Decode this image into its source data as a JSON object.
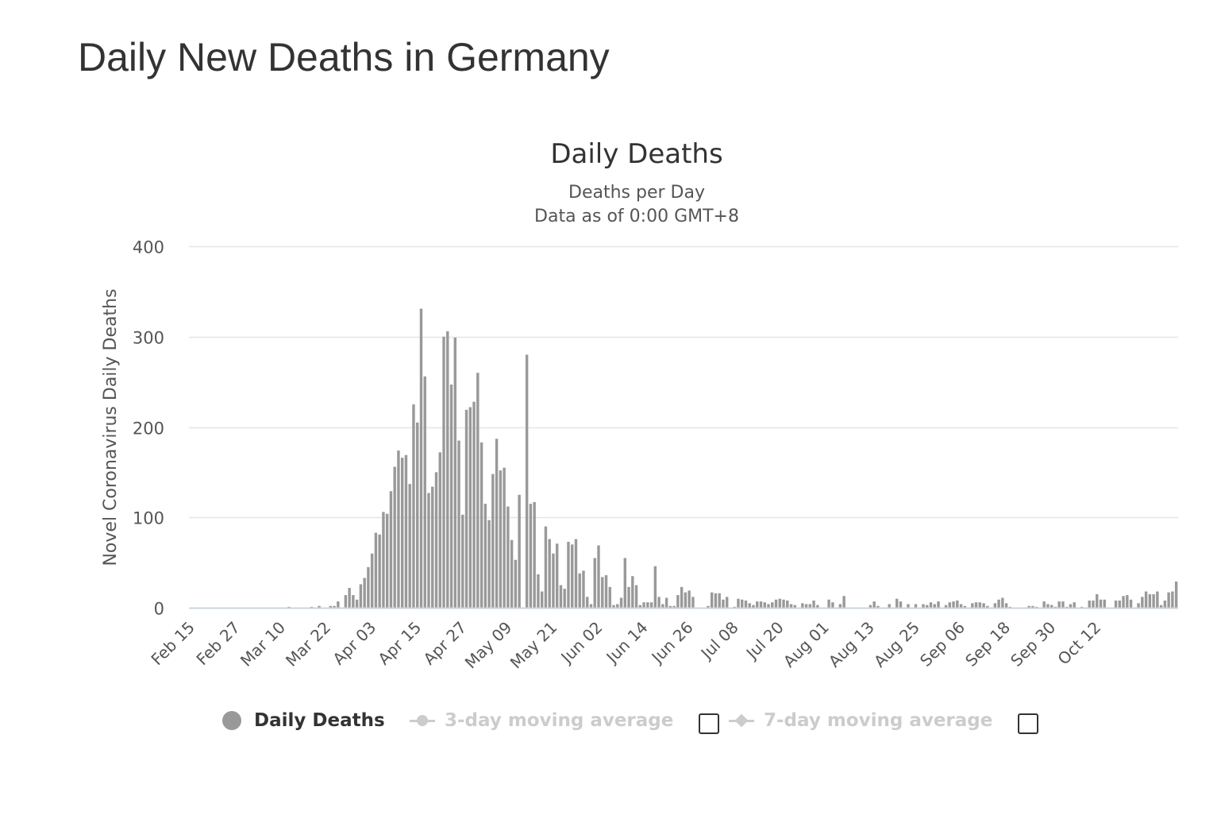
{
  "page": {
    "title": "Daily New Deaths in Germany"
  },
  "chart_data": {
    "type": "bar",
    "title": "Daily Deaths",
    "subtitle_lines": [
      "Deaths per Day",
      "Data as of 0:00 GMT+8"
    ],
    "ylabel": "Novel Coronavirus Daily Deaths",
    "xlabel": "",
    "ylim": [
      0,
      400
    ],
    "y_ticks": [
      0,
      100,
      200,
      300,
      400
    ],
    "grid": true,
    "x_start_date": "2020-02-15",
    "x_tick_labels": [
      "Feb 15",
      "Feb 27",
      "Mar 10",
      "Mar 22",
      "Apr 03",
      "Apr 15",
      "Apr 27",
      "May 09",
      "May 21",
      "Jun 02",
      "Jun 14",
      "Jun 26",
      "Jul 08",
      "Jul 20",
      "Aug 01",
      "Aug 13",
      "Aug 25",
      "Sep 06",
      "Sep 18",
      "Sep 30",
      "Oct 12"
    ],
    "series": [
      {
        "name": "Daily Deaths",
        "color": "#999999",
        "values": [
          0,
          0,
          0,
          0,
          0,
          0,
          0,
          0,
          0,
          0,
          0,
          0,
          0,
          0,
          0,
          0,
          0,
          0,
          0,
          0,
          0,
          0,
          0,
          0,
          0,
          0,
          1,
          0,
          0,
          0,
          0,
          0,
          1,
          0,
          2,
          0,
          0,
          2,
          2,
          7,
          0,
          14,
          22,
          14,
          9,
          26,
          33,
          45,
          60,
          83,
          81,
          106,
          104,
          129,
          156,
          174,
          166,
          169,
          137,
          225,
          205,
          331,
          256,
          127,
          134,
          150,
          172,
          300,
          306,
          247,
          299,
          185,
          103,
          219,
          222,
          228,
          260,
          183,
          115,
          97,
          148,
          187,
          152,
          155,
          112,
          75,
          53,
          125,
          0,
          280,
          115,
          117,
          37,
          18,
          90,
          76,
          60,
          71,
          25,
          21,
          73,
          70,
          76,
          38,
          41,
          12,
          4,
          55,
          69,
          34,
          36,
          23,
          3,
          4,
          11,
          55,
          23,
          35,
          25,
          3,
          6,
          6,
          6,
          46,
          12,
          4,
          11,
          2,
          2,
          14,
          23,
          17,
          19,
          12,
          0,
          0,
          0,
          2,
          17,
          16,
          16,
          9,
          12,
          0,
          1,
          10,
          9,
          8,
          5,
          3,
          7,
          7,
          6,
          4,
          6,
          9,
          10,
          9,
          8,
          4,
          3,
          0,
          5,
          4,
          4,
          8,
          3,
          0,
          0,
          9,
          6,
          0,
          4,
          13,
          0,
          0,
          0,
          0,
          0,
          0,
          3,
          7,
          2,
          0,
          0,
          4,
          0,
          10,
          7,
          0,
          4,
          0,
          4,
          0,
          4,
          3,
          6,
          4,
          7,
          0,
          3,
          6,
          7,
          8,
          4,
          2,
          0,
          5,
          6,
          6,
          5,
          2,
          0,
          5,
          9,
          11,
          5,
          1,
          0,
          0,
          0,
          0,
          2,
          2,
          1,
          0,
          7,
          4,
          3,
          1,
          7,
          7,
          1,
          4,
          6,
          0,
          1,
          0,
          8,
          8,
          15,
          9,
          9,
          0,
          0,
          8,
          8,
          13,
          14,
          9,
          0,
          5,
          12,
          18,
          15,
          15,
          18,
          3,
          8,
          17,
          18,
          29
        ]
      }
    ],
    "legend": {
      "placement": "bottom",
      "items": [
        {
          "label": "Daily Deaths",
          "active": true,
          "color": "#999999"
        },
        {
          "label": "3-day moving average",
          "active": false
        },
        {
          "label": "7-day moving average",
          "active": false
        }
      ]
    }
  }
}
